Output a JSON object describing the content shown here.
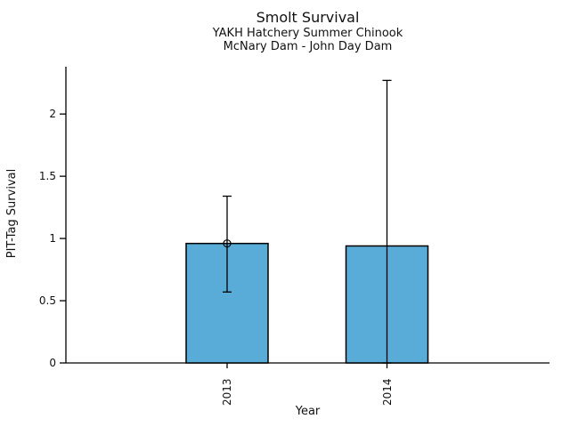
{
  "chart_data": {
    "type": "bar",
    "title": "Smolt Survival",
    "subtitle1": "YAKH Hatchery Summer Chinook",
    "subtitle2": "McNary Dam - John Day Dam",
    "xlabel": "Year",
    "ylabel": "PIT-Tag Survival",
    "categories": [
      "2013",
      "2014"
    ],
    "values": [
      0.96,
      0.94
    ],
    "error_low": [
      0.57,
      0.0
    ],
    "error_high": [
      1.34,
      2.27
    ],
    "point_marker": [
      true,
      false
    ],
    "yticks": [
      0,
      0.5,
      1,
      1.5,
      2
    ],
    "ytick_labels": [
      "0",
      "0.5",
      "1",
      "1.5",
      "2"
    ],
    "ylim": [
      0,
      2.38
    ],
    "grid": false,
    "legend": "none",
    "bar_color": "#58ACD7",
    "bar_edge_color": "#000000",
    "axis_color": "#000000",
    "background": "#FFFFFF"
  }
}
